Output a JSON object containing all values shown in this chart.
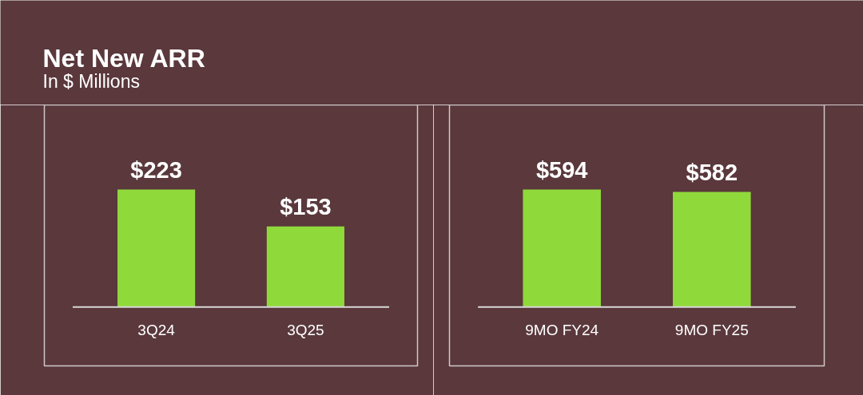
{
  "chart_data": [
    {
      "type": "bar",
      "title": "Net New ARR",
      "subtitle": "In $ Millions",
      "categories": [
        "3Q24",
        "3Q25"
      ],
      "series": [
        {
          "color": "#90d93b",
          "values": [
            223,
            153
          ],
          "value_labels": [
            "$223",
            "$153"
          ]
        }
      ]
    },
    {
      "type": "bar",
      "categories": [
        "9MO FY24",
        "9MO FY25"
      ],
      "series": [
        {
          "color": "#90d93b",
          "values": [
            594,
            582
          ],
          "value_labels": [
            "$594",
            "$582"
          ]
        }
      ]
    }
  ]
}
